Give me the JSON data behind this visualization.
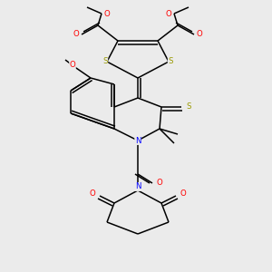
{
  "background_color": "#ebebeb",
  "line_color": "#000000",
  "atom_colors": {
    "N": "#0000ff",
    "O": "#ff0000",
    "S": "#999900"
  },
  "figsize": [
    3.0,
    3.0
  ],
  "dpi": 100,
  "lw": 1.1,
  "fs": 6.2
}
